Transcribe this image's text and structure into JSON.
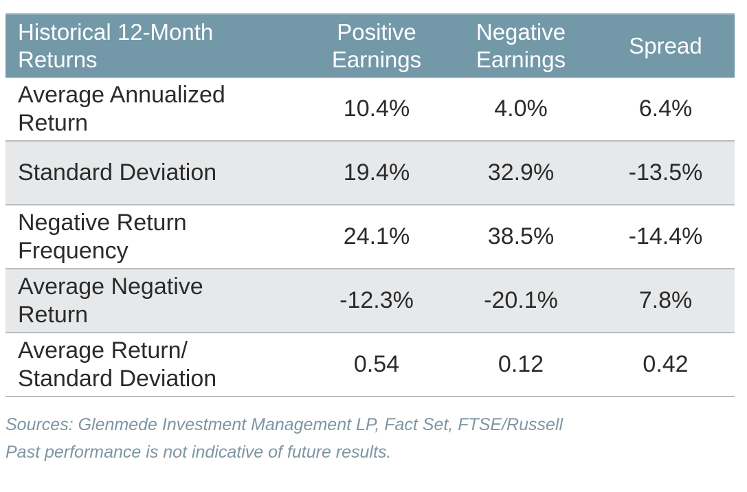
{
  "table": {
    "header": {
      "col0": "Historical 12-Month\nReturns",
      "col1": "Positive\nEarnings",
      "col2": "Negative\nEarnings",
      "col3": "Spread"
    },
    "rows": [
      {
        "label": "Average Annualized\nReturn",
        "positive": "10.4%",
        "negative": "4.0%",
        "spread": "6.4%"
      },
      {
        "label": "Standard Deviation",
        "positive": "19.4%",
        "negative": "32.9%",
        "spread": "-13.5%"
      },
      {
        "label": "Negative Return\nFrequency",
        "positive": "24.1%",
        "negative": "38.5%",
        "spread": "-14.4%"
      },
      {
        "label": "Average Negative\nReturn",
        "positive": "-12.3%",
        "negative": "-20.1%",
        "spread": "7.8%"
      },
      {
        "label": "Average Return/\nStandard Deviation",
        "positive": "0.54",
        "negative": "0.12",
        "spread": "0.42"
      }
    ]
  },
  "notes": {
    "sources": "Sources:  Glenmede Investment Management LP, Fact Set, FTSE/Russell",
    "disclaimer": "Past performance is not indicative of future results."
  },
  "colors": {
    "header_bg": "#7399a9",
    "header_text": "#ffffff",
    "row_shade": "#e6e8ea",
    "notes_text": "#7e95a2"
  },
  "chart_data": {
    "type": "table",
    "columns": [
      "Historical 12-Month Returns",
      "Positive Earnings",
      "Negative Earnings",
      "Spread"
    ],
    "rows": [
      [
        "Average Annualized Return",
        "10.4%",
        "4.0%",
        "6.4%"
      ],
      [
        "Standard Deviation",
        "19.4%",
        "32.9%",
        "-13.5%"
      ],
      [
        "Negative Return Frequency",
        "24.1%",
        "38.5%",
        "-14.4%"
      ],
      [
        "Average Negative Return",
        "-12.3%",
        "-20.1%",
        "7.8%"
      ],
      [
        "Average Return/ Standard Deviation",
        "0.54",
        "0.12",
        "0.42"
      ]
    ]
  }
}
